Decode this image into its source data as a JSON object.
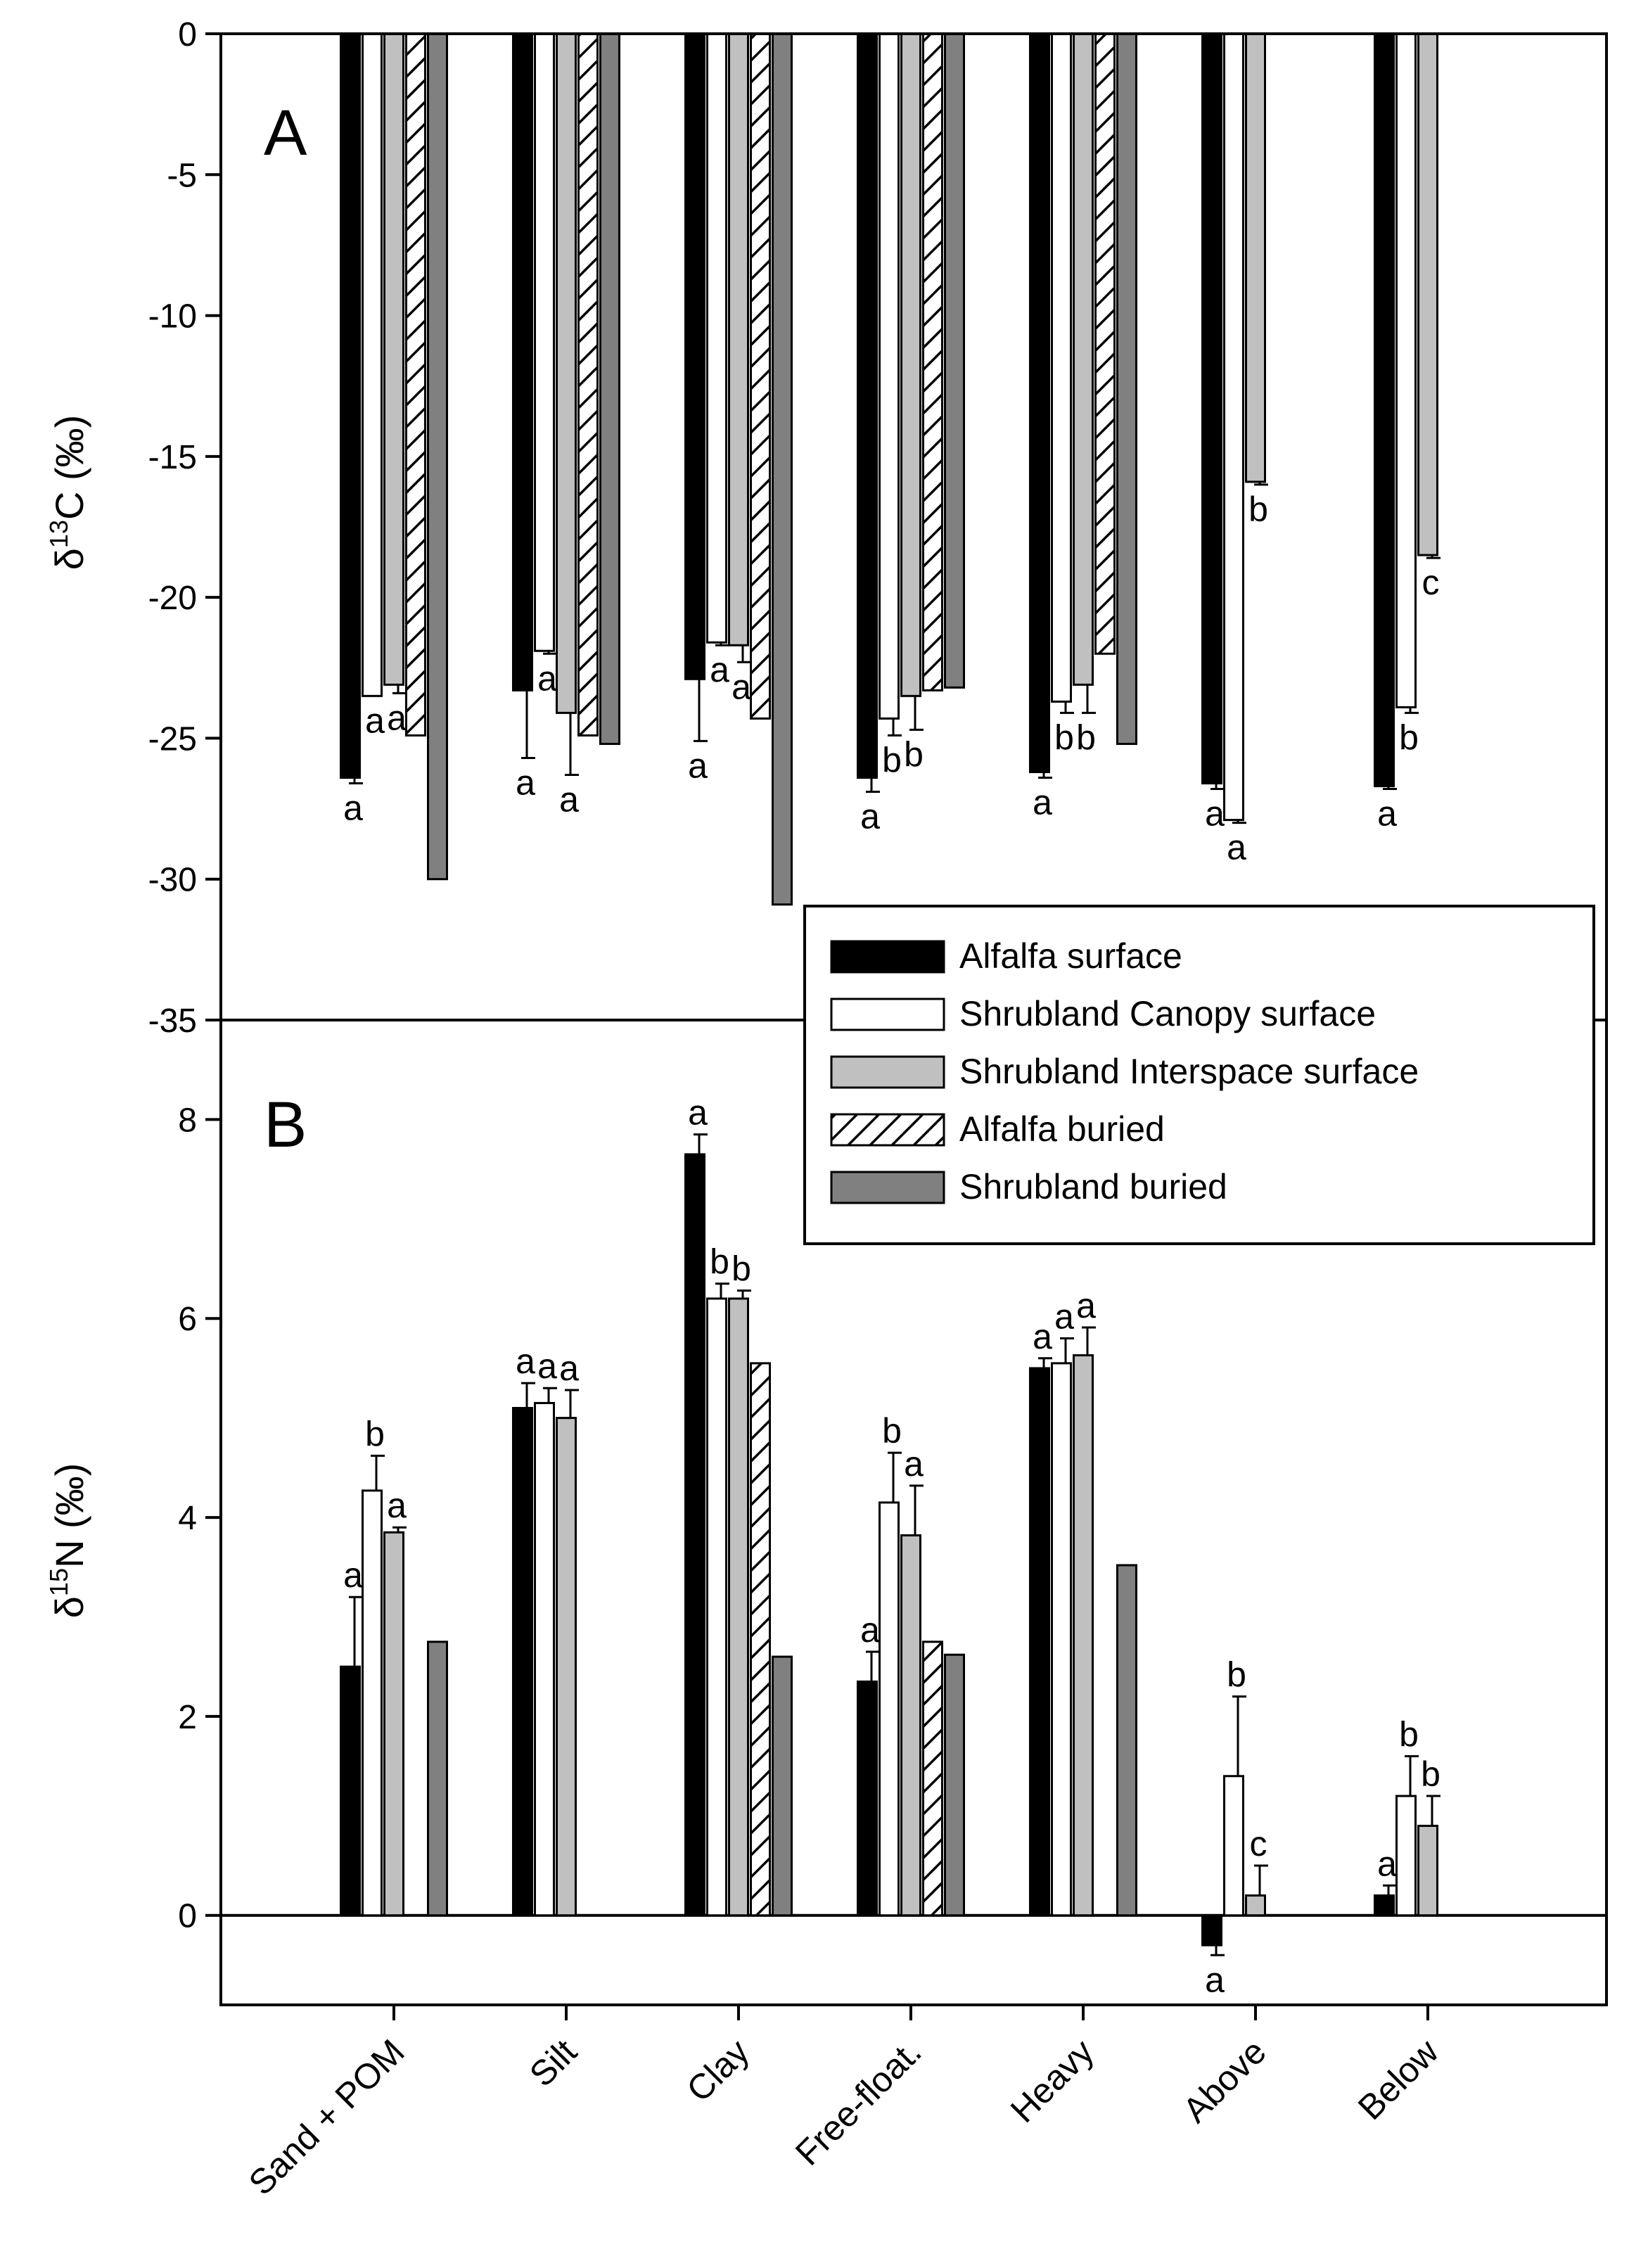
{
  "chart_data": [
    {
      "panel": "A",
      "type": "bar",
      "ylabel_prefix": "δ",
      "ylabel_sup": "13",
      "ylabel_rest": "C (‰)",
      "ylim": [
        -35,
        0
      ],
      "yticks": [
        0,
        -5,
        -10,
        -15,
        -20,
        -25,
        -30,
        -35
      ],
      "categories": [
        "Sand + POM",
        "Silt",
        "Clay",
        "Free-float.",
        "Heavy",
        "Above",
        "Below"
      ],
      "series": [
        {
          "name": "Alfalfa surface",
          "values": [
            -26.4,
            -23.3,
            -22.9,
            -26.4,
            -26.2,
            -26.6,
            -26.7
          ],
          "errors": [
            0.2,
            2.4,
            2.2,
            0.5,
            0.2,
            0.2,
            0.1
          ]
        },
        {
          "name": "Shrubland Canopy surface",
          "values": [
            -23.5,
            -21.9,
            -21.6,
            -24.3,
            -23.7,
            -27.9,
            -23.9
          ],
          "errors": [
            0,
            0.1,
            0.1,
            0.6,
            0.4,
            0.1,
            0.2
          ]
        },
        {
          "name": "Shrubland Interspace surface",
          "values": [
            -23.1,
            -24.1,
            -21.7,
            -23.5,
            -23.1,
            -15.9,
            -18.5
          ],
          "errors": [
            0.3,
            2.2,
            0.6,
            1.2,
            1.0,
            0.1,
            0.1
          ]
        },
        {
          "name": "Alfalfa buried",
          "values": [
            -24.9,
            -24.9,
            -24.3,
            -23.3,
            -22.0,
            null,
            null
          ],
          "errors": [
            0,
            0,
            0,
            0,
            0,
            0,
            0
          ]
        },
        {
          "name": "Shrubland buried",
          "values": [
            -30.0,
            -25.2,
            -30.9,
            -23.2,
            -25.2,
            null,
            null
          ],
          "errors": [
            0,
            0,
            0,
            0,
            0,
            0,
            0
          ]
        }
      ],
      "annotations": [
        {
          "category": 0,
          "series": 0,
          "text": "a"
        },
        {
          "category": 0,
          "series": 1,
          "text": "a"
        },
        {
          "category": 0,
          "series": 2,
          "text": "a"
        },
        {
          "category": 1,
          "series": 0,
          "text": "a"
        },
        {
          "category": 1,
          "series": 1,
          "text": "a"
        },
        {
          "category": 1,
          "series": 2,
          "text": "a"
        },
        {
          "category": 2,
          "series": 0,
          "text": "a"
        },
        {
          "category": 2,
          "series": 1,
          "text": "a"
        },
        {
          "category": 2,
          "series": 2,
          "text": "a"
        },
        {
          "category": 3,
          "series": 0,
          "text": "a"
        },
        {
          "category": 3,
          "series": 1,
          "text": "b"
        },
        {
          "category": 3,
          "series": 2,
          "text": "b"
        },
        {
          "category": 4,
          "series": 0,
          "text": "a"
        },
        {
          "category": 4,
          "series": 1,
          "text": "b"
        },
        {
          "category": 4,
          "series": 2,
          "text": "b"
        },
        {
          "category": 5,
          "series": 0,
          "text": "a"
        },
        {
          "category": 5,
          "series": 1,
          "text": "a"
        },
        {
          "category": 5,
          "series": 2,
          "text": "b"
        },
        {
          "category": 6,
          "series": 0,
          "text": "a"
        },
        {
          "category": 6,
          "series": 1,
          "text": "b"
        },
        {
          "category": 6,
          "series": 2,
          "text": "c"
        }
      ]
    },
    {
      "panel": "B",
      "type": "bar",
      "ylabel_prefix": "δ",
      "ylabel_sup": "15",
      "ylabel_rest": "N (‰)",
      "ylim": [
        -0.9,
        9.0
      ],
      "yticks": [
        0,
        2,
        4,
        6,
        8
      ],
      "categories": [
        "Sand + POM",
        "Silt",
        "Clay",
        "Free-float.",
        "Heavy",
        "Above",
        "Below"
      ],
      "series": [
        {
          "name": "Alfalfa surface",
          "values": [
            2.5,
            5.1,
            7.65,
            2.35,
            5.5,
            -0.3,
            0.2
          ],
          "errors": [
            0.7,
            0.25,
            0.2,
            0.3,
            0.1,
            0.1,
            0.1
          ]
        },
        {
          "name": "Shrubland Canopy surface",
          "values": [
            4.27,
            5.15,
            6.2,
            4.15,
            5.55,
            1.4,
            1.2
          ],
          "errors": [
            0.35,
            0.15,
            0.15,
            0.5,
            0.25,
            0.8,
            0.4
          ]
        },
        {
          "name": "Shrubland Interspace surface",
          "values": [
            3.85,
            5.0,
            6.2,
            3.82,
            5.63,
            0.2,
            0.9
          ],
          "errors": [
            0.05,
            0.28,
            0.08,
            0.5,
            0.28,
            0.3,
            0.3
          ]
        },
        {
          "name": "Alfalfa buried",
          "values": [
            null,
            null,
            5.55,
            2.75,
            null,
            null,
            null
          ],
          "errors": [
            0,
            0,
            0,
            0,
            0,
            0,
            0
          ]
        },
        {
          "name": "Shrubland buried",
          "values": [
            2.75,
            null,
            2.6,
            2.62,
            3.52,
            null,
            null
          ],
          "errors": [
            0,
            0,
            0,
            0,
            0,
            0,
            0
          ]
        }
      ],
      "annotations": [
        {
          "category": 0,
          "series": 0,
          "text": "a"
        },
        {
          "category": 0,
          "series": 1,
          "text": "b"
        },
        {
          "category": 0,
          "series": 2,
          "text": "a"
        },
        {
          "category": 1,
          "series": 0,
          "text": "a"
        },
        {
          "category": 1,
          "series": 1,
          "text": "a"
        },
        {
          "category": 1,
          "series": 2,
          "text": "a"
        },
        {
          "category": 2,
          "series": 0,
          "text": "a"
        },
        {
          "category": 2,
          "series": 1,
          "text": "b"
        },
        {
          "category": 2,
          "series": 2,
          "text": "b"
        },
        {
          "category": 3,
          "series": 0,
          "text": "a"
        },
        {
          "category": 3,
          "series": 1,
          "text": "b"
        },
        {
          "category": 3,
          "series": 2,
          "text": "a"
        },
        {
          "category": 4,
          "series": 0,
          "text": "a"
        },
        {
          "category": 4,
          "series": 1,
          "text": "a"
        },
        {
          "category": 4,
          "series": 2,
          "text": "a"
        },
        {
          "category": 5,
          "series": 0,
          "text": "a"
        },
        {
          "category": 5,
          "series": 1,
          "text": "b"
        },
        {
          "category": 5,
          "series": 2,
          "text": "c"
        },
        {
          "category": 6,
          "series": 0,
          "text": "a"
        },
        {
          "category": 6,
          "series": 1,
          "text": "b"
        },
        {
          "category": 6,
          "series": 2,
          "text": "b"
        }
      ]
    }
  ],
  "legend": {
    "placement": "top-right of panel B",
    "entries": [
      "Alfalfa surface",
      "Shrubland Canopy surface",
      "Shrubland Interspace surface",
      "Alfalfa buried",
      "Shrubland buried"
    ]
  },
  "series_styles": [
    {
      "name": "Alfalfa surface",
      "fill": "#000000",
      "pattern": "solid"
    },
    {
      "name": "Shrubland Canopy surface",
      "fill": "#ffffff",
      "pattern": "solid"
    },
    {
      "name": "Shrubland Interspace surface",
      "fill": "#c0c0c0",
      "pattern": "solid"
    },
    {
      "name": "Alfalfa buried",
      "fill": "#ffffff",
      "pattern": "diagonal-hatch"
    },
    {
      "name": "Shrubland buried",
      "fill": "#808080",
      "pattern": "solid"
    }
  ]
}
